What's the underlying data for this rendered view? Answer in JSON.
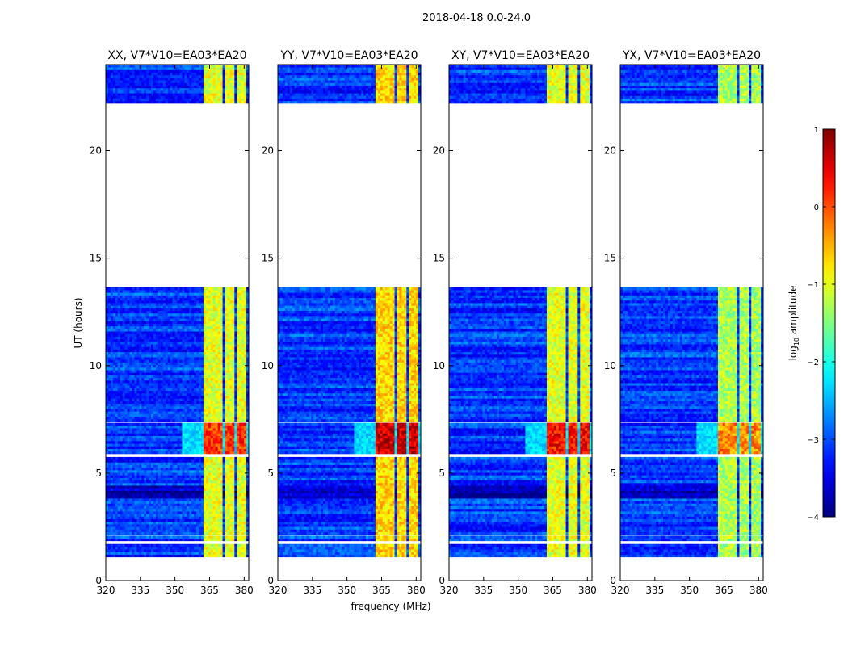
{
  "figure_title": "2018-04-18 0.0-24.0",
  "chart_data": {
    "type": "heatmap",
    "title": "2018-04-18 0.0-24.0",
    "xlabel": "frequency (MHz)",
    "ylabel": "UT (hours)",
    "xlim": [
      320,
      382
    ],
    "ylim": [
      0,
      24
    ],
    "xticks": [
      320,
      335,
      350,
      365,
      380
    ],
    "yticks": [
      0,
      5,
      10,
      15,
      20
    ],
    "panels": [
      {
        "title": "XX, V7*V10=EA03*EA20",
        "pol": "XX",
        "rfi_level": -1.0,
        "strong_level": 0.1
      },
      {
        "title": "YY, V7*V10=EA03*EA20",
        "pol": "YY",
        "rfi_level": -0.7,
        "strong_level": 0.6
      },
      {
        "title": "XY, V7*V10=EA03*EA20",
        "pol": "XY",
        "rfi_level": -1.0,
        "strong_level": 0.3
      },
      {
        "title": "YX, V7*V10=EA03*EA20",
        "pol": "YX",
        "rfi_level": -1.3,
        "strong_level": -0.3
      }
    ],
    "data_segments_ut": [
      [
        1.1,
        1.7
      ],
      [
        1.85,
        2.05
      ],
      [
        2.15,
        5.7
      ],
      [
        5.9,
        7.3
      ],
      [
        7.4,
        13.6
      ],
      [
        22.2,
        24.0
      ]
    ],
    "gaps_ut": [
      [
        0.0,
        1.1
      ],
      [
        13.6,
        22.2
      ]
    ],
    "rfi_channels_mhz": [
      [
        362.5,
        366.5
      ],
      [
        367,
        371
      ],
      [
        372,
        376
      ],
      [
        377,
        381
      ]
    ],
    "broadband_rfi_ut": [
      [
        5.9,
        7.3
      ]
    ],
    "colorbar": {
      "label": "log10 amplitude",
      "label_prefix": "log",
      "label_sub": "10",
      "label_suffix": " amplitude",
      "min": -4,
      "max": 1,
      "ticks": [
        1,
        0,
        -1,
        -2,
        -3,
        -4
      ],
      "tick_labels": [
        "1",
        "0",
        "−1",
        "−2",
        "−3",
        "−4"
      ],
      "colormap": "jet"
    }
  }
}
